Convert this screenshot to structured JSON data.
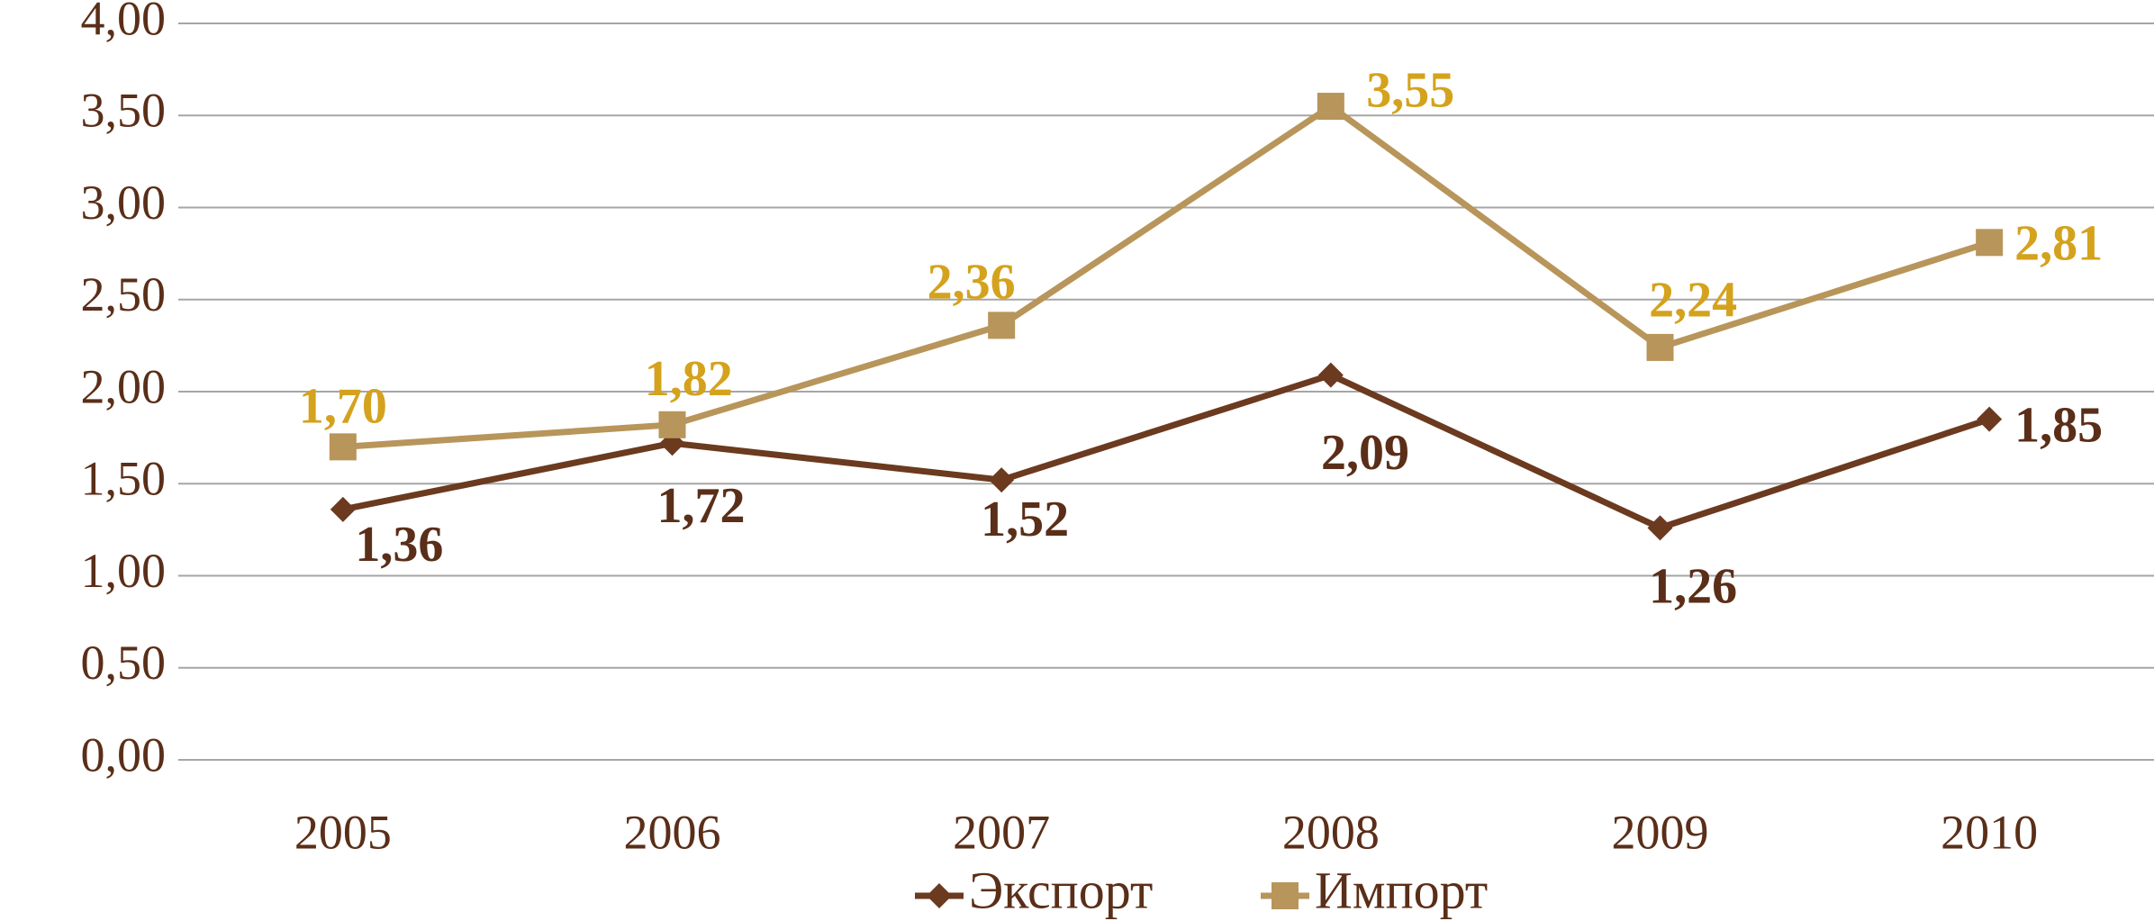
{
  "chart_data": {
    "type": "line",
    "categories": [
      "2005",
      "2006",
      "2007",
      "2008",
      "2009",
      "2010"
    ],
    "series": [
      {
        "name": "Экспорт",
        "color": "#6b3a1f",
        "label_color": "#5a2e18",
        "marker": "diamond",
        "values": [
          1.36,
          1.72,
          1.52,
          2.09,
          1.26,
          1.85
        ],
        "value_labels": [
          "1,36",
          "1,72",
          "1,52",
          "2,09",
          "1,26",
          "1,85"
        ]
      },
      {
        "name": "Импорт",
        "color": "#b8955a",
        "label_color": "#d4a21c",
        "marker": "square",
        "values": [
          1.7,
          1.82,
          2.36,
          3.55,
          2.24,
          2.81
        ],
        "value_labels": [
          "1,70",
          "1,82",
          "2,36",
          "3,55",
          "2,24",
          "2,81"
        ]
      }
    ],
    "ylim": [
      0,
      4
    ],
    "yticks": [
      {
        "value": 0,
        "label": "0,00"
      },
      {
        "value": 0.5,
        "label": "0,50"
      },
      {
        "value": 1,
        "label": "1,00"
      },
      {
        "value": 1.5,
        "label": "1,50"
      },
      {
        "value": 2,
        "label": "2,00"
      },
      {
        "value": 2.5,
        "label": "2,50"
      },
      {
        "value": 3,
        "label": "3,00"
      },
      {
        "value": 3.5,
        "label": "3,50"
      },
      {
        "value": 4,
        "label": "4,00"
      }
    ],
    "grid": true,
    "legend": "bottom"
  }
}
